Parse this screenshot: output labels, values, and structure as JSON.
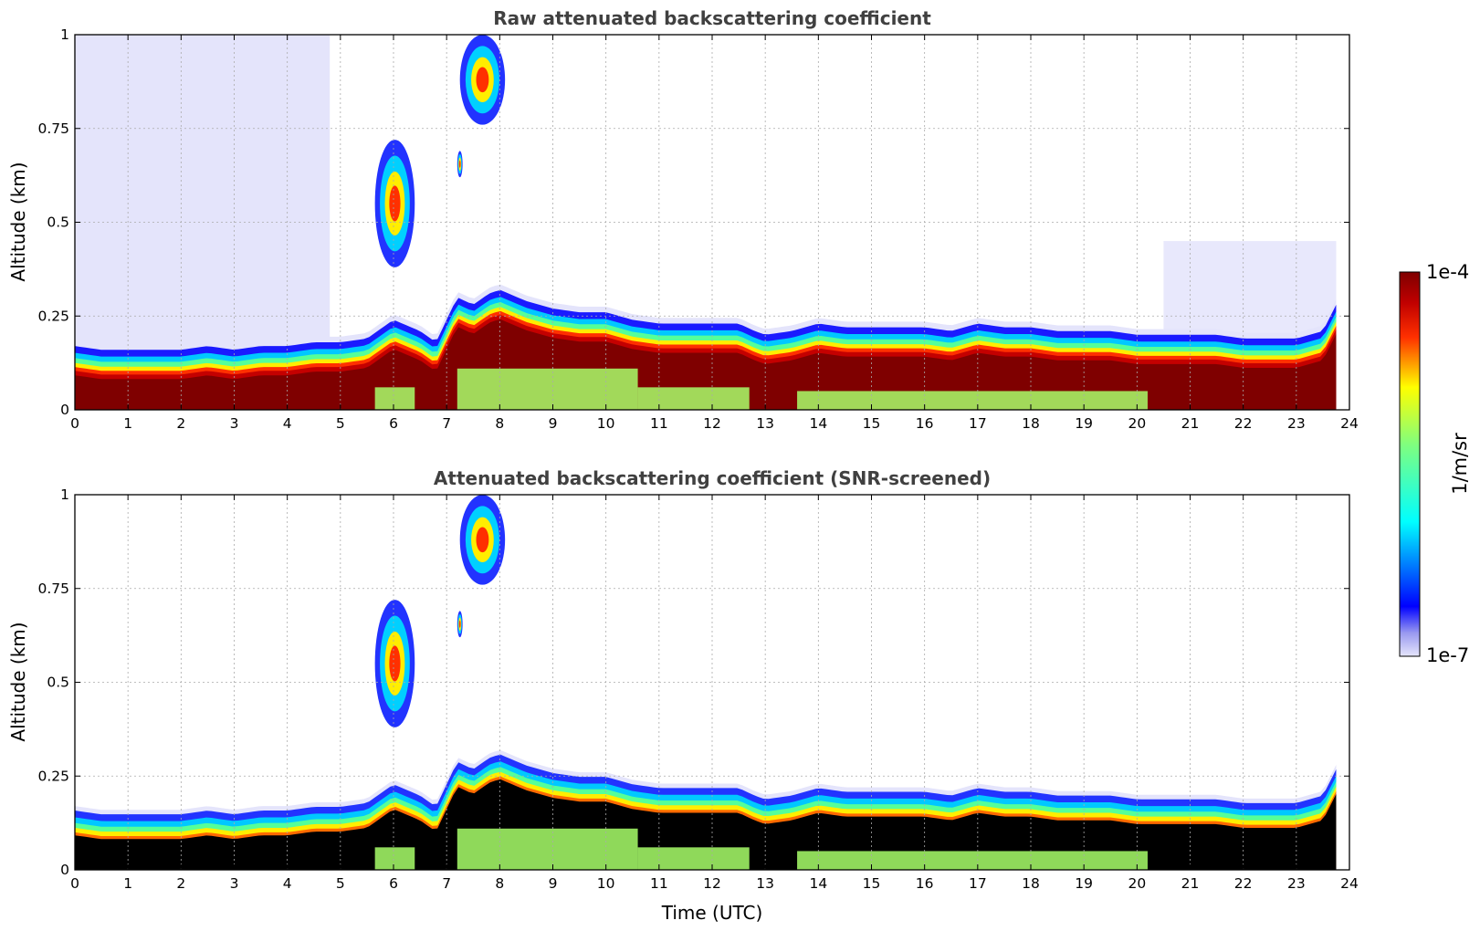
{
  "chart_data": [
    {
      "type": "heatmap",
      "title": "Raw attenuated backscattering coefficient",
      "xlabel": "",
      "ylabel": "Altitude (km)",
      "xlim": [
        0,
        24
      ],
      "ylim": [
        0,
        1
      ],
      "x_ticks": [
        "0",
        "1",
        "2",
        "3",
        "4",
        "5",
        "6",
        "7",
        "8",
        "9",
        "10",
        "11",
        "12",
        "13",
        "14",
        "15",
        "16",
        "17",
        "18",
        "19",
        "20",
        "21",
        "22",
        "23",
        "24"
      ],
      "y_ticks": [
        "0",
        "0.25",
        "0.5",
        "0.75",
        "1"
      ],
      "grid": true,
      "screened": false,
      "data_end_hour": 23.75,
      "cloud_top_km": [
        [
          0,
          0.17
        ],
        [
          0.5,
          0.16
        ],
        [
          1,
          0.16
        ],
        [
          1.5,
          0.16
        ],
        [
          2,
          0.16
        ],
        [
          2.5,
          0.17
        ],
        [
          3,
          0.16
        ],
        [
          3.5,
          0.17
        ],
        [
          4,
          0.17
        ],
        [
          4.5,
          0.18
        ],
        [
          5,
          0.18
        ],
        [
          5.5,
          0.19
        ],
        [
          6,
          0.24
        ],
        [
          6.5,
          0.21
        ],
        [
          6.8,
          0.18
        ],
        [
          7.2,
          0.3
        ],
        [
          7.5,
          0.28
        ],
        [
          7.8,
          0.31
        ],
        [
          8,
          0.32
        ],
        [
          8.5,
          0.29
        ],
        [
          9,
          0.27
        ],
        [
          9.5,
          0.26
        ],
        [
          10,
          0.26
        ],
        [
          10.5,
          0.24
        ],
        [
          11,
          0.23
        ],
        [
          11.5,
          0.23
        ],
        [
          12,
          0.23
        ],
        [
          12.5,
          0.23
        ],
        [
          12.8,
          0.21
        ],
        [
          13,
          0.2
        ],
        [
          13.5,
          0.21
        ],
        [
          14,
          0.23
        ],
        [
          14.5,
          0.22
        ],
        [
          15,
          0.22
        ],
        [
          15.5,
          0.22
        ],
        [
          16,
          0.22
        ],
        [
          16.5,
          0.21
        ],
        [
          17,
          0.23
        ],
        [
          17.5,
          0.22
        ],
        [
          18,
          0.22
        ],
        [
          18.5,
          0.21
        ],
        [
          19,
          0.21
        ],
        [
          19.5,
          0.21
        ],
        [
          20,
          0.2
        ],
        [
          20.5,
          0.2
        ],
        [
          21,
          0.2
        ],
        [
          21.5,
          0.2
        ],
        [
          22,
          0.19
        ],
        [
          22.5,
          0.19
        ],
        [
          23,
          0.19
        ],
        [
          23.5,
          0.21
        ],
        [
          23.75,
          0.28
        ]
      ],
      "features": [
        {
          "label": "cloud",
          "t_start": 5.65,
          "t_end": 6.4,
          "alt_bottom_km": 0.38,
          "alt_top_km": 0.72
        },
        {
          "label": "cloud",
          "t_start": 7.2,
          "t_end": 7.3,
          "alt_bottom_km": 0.62,
          "alt_top_km": 0.69
        },
        {
          "label": "cloud",
          "t_start": 7.25,
          "t_end": 8.1,
          "alt_bottom_km": 0.76,
          "alt_top_km": 1.0
        }
      ]
    },
    {
      "type": "heatmap",
      "title": "Attenuated backscattering coefficient (SNR-screened)",
      "xlabel": "Time (UTC)",
      "ylabel": "Altitude (km)",
      "xlim": [
        0,
        24
      ],
      "ylim": [
        0,
        1
      ],
      "x_ticks": [
        "0",
        "1",
        "2",
        "3",
        "4",
        "5",
        "6",
        "7",
        "8",
        "9",
        "10",
        "11",
        "12",
        "13",
        "14",
        "15",
        "16",
        "17",
        "18",
        "19",
        "20",
        "21",
        "22",
        "23",
        "24"
      ],
      "y_ticks": [
        "0",
        "0.25",
        "0.5",
        "0.75",
        "1"
      ],
      "grid": true,
      "screened": true,
      "data_end_hour": 23.75
    }
  ],
  "colorbar": {
    "label": "1/m/sr",
    "max_label": "1e-4",
    "min_label": "1e-7",
    "colormap": "jet",
    "low_color": "#e4e4fb",
    "high_color": "#7f0000",
    "screened_color": "#000000"
  }
}
